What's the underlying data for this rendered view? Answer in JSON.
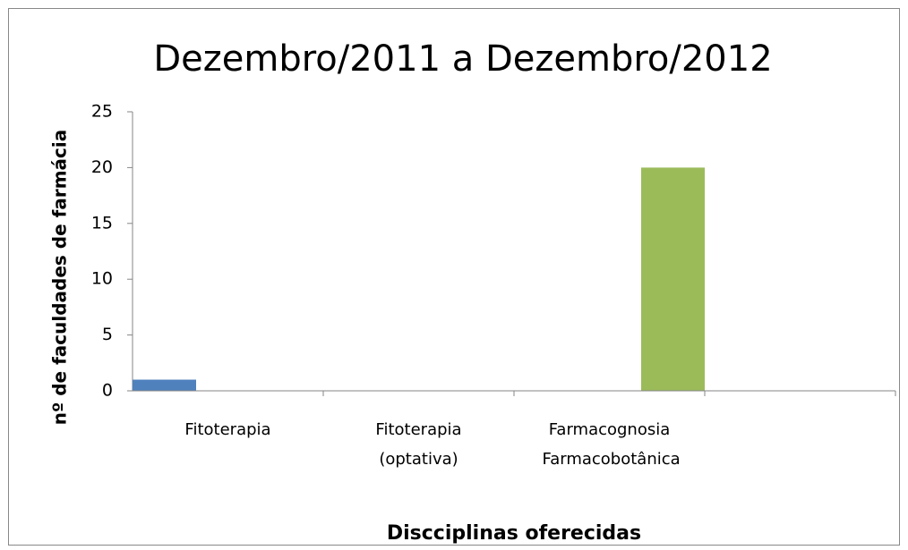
{
  "chart_data": {
    "type": "bar",
    "title": "Dezembro/2011 a Dezembro/2012",
    "xlabel": "Discciplinas oferecidas",
    "ylabel": "nº de faculdades de farmácia",
    "categories": [
      "Fitoterapia",
      "Fitoterapia (optativa)",
      "Farmacognosia Farmacobotânica",
      null
    ],
    "series": [
      {
        "color": "#4f81bd",
        "values": [
          1,
          0,
          0,
          0
        ]
      },
      {
        "color": "#c0504d",
        "values": [
          0,
          0,
          0,
          0
        ]
      },
      {
        "color": "#9bbb59",
        "values": [
          0,
          0,
          20,
          0
        ]
      }
    ],
    "ylim": [
      0,
      25
    ],
    "yticks": [
      0,
      5,
      10,
      15,
      20,
      25
    ]
  }
}
